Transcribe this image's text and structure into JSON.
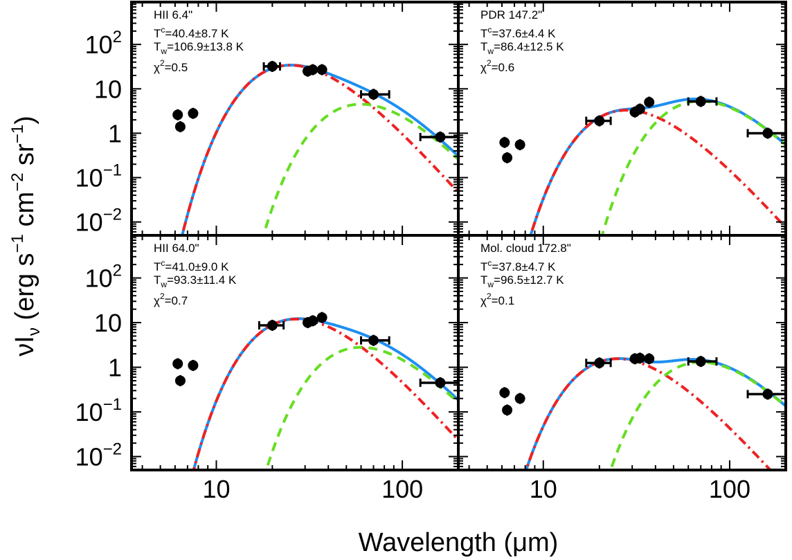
{
  "chart_data": {
    "type": "line",
    "xlabel": "Wavelength (μm)",
    "ylabel": "νIν (erg s⁻¹ cm⁻² sr⁻¹)",
    "xscale": "log",
    "yscale": "log",
    "xlim": [
      3.5,
      200
    ],
    "ylim": [
      0.005,
      900
    ],
    "x_ticklabels": [
      "10",
      "100"
    ],
    "y_ticklabels": [
      "10⁻²",
      "10⁻¹",
      "1",
      "10",
      "10²"
    ],
    "line_styles": {
      "total": {
        "color": "#1e8ff0",
        "style": "solid"
      },
      "cold": {
        "color": "#ee2222",
        "style": "dash-dot"
      },
      "warm": {
        "color": "#66dd22",
        "style": "dashed"
      }
    },
    "panels": [
      {
        "name": "HII 6.4\"",
        "Tc": "40.4±8.7 K",
        "Tw": "106.9±13.8 K",
        "chi2": "0.5",
        "components": {
          "cold": {
            "T": 40.4,
            "peak_x": 25,
            "peak_y": 34
          },
          "warm": {
            "T": 106.9,
            "peak_x": 60,
            "peak_y": 4.5
          }
        },
        "points": [
          {
            "x": 6.2,
            "y": 2.6
          },
          {
            "x": 6.4,
            "y": 1.4
          },
          {
            "x": 7.5,
            "y": 2.8
          },
          {
            "x": 20,
            "y": 32,
            "xerr": [
              18,
              22
            ]
          },
          {
            "x": 31,
            "y": 25
          },
          {
            "x": 33,
            "y": 27
          },
          {
            "x": 37,
            "y": 27
          },
          {
            "x": 70,
            "y": 7.5,
            "xerr": [
              60,
              85
            ]
          },
          {
            "x": 160,
            "y": 0.82,
            "xerr": [
              125,
              200
            ]
          }
        ]
      },
      {
        "name": "PDR 147.2\"",
        "Tc": "37.6±4.4 K",
        "Tw": "86.4±12.5 K",
        "chi2": "0.6",
        "components": {
          "cold": {
            "T": 37.6,
            "peak_x": 28,
            "peak_y": 3.3
          },
          "warm": {
            "T": 86.4,
            "peak_x": 70,
            "peak_y": 5.3
          }
        },
        "points": [
          {
            "x": 6.2,
            "y": 0.62
          },
          {
            "x": 6.4,
            "y": 0.28
          },
          {
            "x": 7.5,
            "y": 0.55
          },
          {
            "x": 20,
            "y": 1.9,
            "xerr": [
              17,
              23
            ]
          },
          {
            "x": 31,
            "y": 3.0
          },
          {
            "x": 33,
            "y": 3.5
          },
          {
            "x": 37,
            "y": 5.0
          },
          {
            "x": 70,
            "y": 5.2,
            "xerr": [
              60,
              85
            ]
          },
          {
            "x": 160,
            "y": 1.0,
            "xerr": [
              125,
              200
            ]
          }
        ]
      },
      {
        "name": "HII 64.0\"",
        "Tc": "41.0±9.0 K",
        "Tw": "93.3±11.4 K",
        "chi2": "0.7",
        "components": {
          "cold": {
            "T": 41.0,
            "peak_x": 27,
            "peak_y": 12
          },
          "warm": {
            "T": 93.3,
            "peak_x": 60,
            "peak_y": 2.8
          }
        },
        "points": [
          {
            "x": 6.2,
            "y": 1.2
          },
          {
            "x": 6.4,
            "y": 0.5
          },
          {
            "x": 7.5,
            "y": 1.1
          },
          {
            "x": 20,
            "y": 8.7,
            "xerr": [
              17,
              23
            ]
          },
          {
            "x": 31,
            "y": 10
          },
          {
            "x": 33,
            "y": 11
          },
          {
            "x": 37,
            "y": 13
          },
          {
            "x": 70,
            "y": 4.0,
            "xerr": [
              60,
              85
            ]
          },
          {
            "x": 160,
            "y": 0.45,
            "xerr": [
              125,
              200
            ]
          }
        ]
      },
      {
        "name": "Mol. cloud 172.8\"",
        "Tc": "37.8±4.7 K",
        "Tw": "96.5±12.7 K",
        "chi2": "0.1",
        "components": {
          "cold": {
            "T": 37.8,
            "peak_x": 25,
            "peak_y": 1.55
          },
          "warm": {
            "T": 96.5,
            "peak_x": 70,
            "peak_y": 1.3
          }
        },
        "points": [
          {
            "x": 6.2,
            "y": 0.27
          },
          {
            "x": 6.4,
            "y": 0.11
          },
          {
            "x": 7.5,
            "y": 0.2
          },
          {
            "x": 20,
            "y": 1.25,
            "xerr": [
              17,
              23
            ]
          },
          {
            "x": 31,
            "y": 1.55
          },
          {
            "x": 33,
            "y": 1.6
          },
          {
            "x": 37,
            "y": 1.55
          },
          {
            "x": 70,
            "y": 1.35,
            "xerr": [
              60,
              85
            ]
          },
          {
            "x": 160,
            "y": 0.25,
            "xerr": [
              125,
              200
            ]
          }
        ]
      }
    ]
  }
}
